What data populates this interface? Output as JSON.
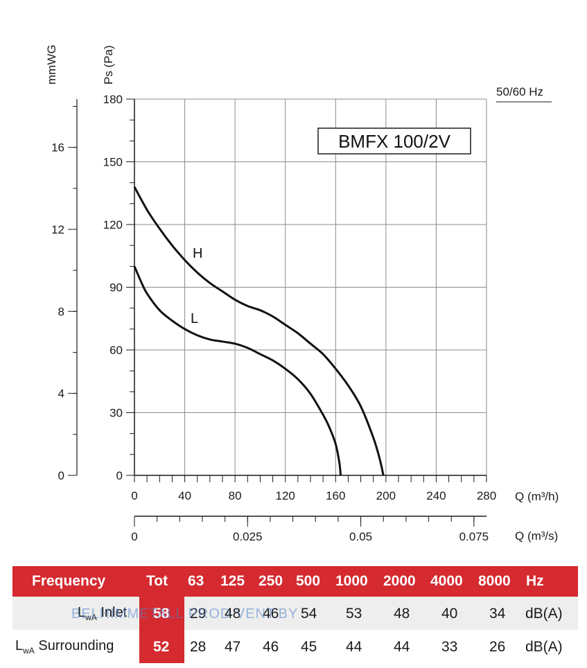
{
  "chart_data": {
    "type": "line",
    "title": "BMFX 100/2V",
    "frequency_note": "50/60 Hz",
    "xlabel": "Q (m³/h)",
    "x2label": "Q (m³/s)",
    "ylabel": "Ps (Pa)",
    "y2label": "mmWG",
    "xlim": [
      0,
      280
    ],
    "ylim": [
      0,
      180
    ],
    "x_ticks": [
      0,
      40,
      80,
      120,
      160,
      200,
      240,
      280
    ],
    "y_ticks": [
      0,
      30,
      60,
      90,
      120,
      150,
      180
    ],
    "x2_ticks": [
      "0",
      "0.025",
      "0.05",
      "0.075"
    ],
    "x2_tick_values": [
      0,
      0.025,
      0.05,
      0.075
    ],
    "y2_ticks": [
      0,
      4,
      8,
      12,
      16
    ],
    "grid": true,
    "series": [
      {
        "name": "H",
        "x": [
          0,
          10,
          20,
          30,
          40,
          50,
          60,
          70,
          80,
          90,
          100,
          110,
          120,
          130,
          140,
          150,
          160,
          170,
          180,
          190,
          195,
          198
        ],
        "y": [
          138,
          127,
          118,
          110,
          103,
          97,
          92,
          88,
          84,
          81,
          79,
          76,
          72,
          68,
          63,
          58,
          51,
          43,
          33,
          18,
          8,
          0
        ]
      },
      {
        "name": "L",
        "x": [
          0,
          5,
          10,
          20,
          30,
          40,
          50,
          60,
          70,
          80,
          90,
          100,
          110,
          120,
          130,
          140,
          150,
          155,
          160,
          163,
          164
        ],
        "y": [
          100,
          93,
          87,
          79,
          74,
          70,
          67,
          65,
          64,
          63,
          61,
          58,
          55,
          51,
          46,
          39,
          29,
          23,
          15,
          6,
          0
        ]
      }
    ]
  },
  "sound_table": {
    "headers": [
      "Frequency",
      "Tot",
      "63",
      "125",
      "250",
      "500",
      "1000",
      "2000",
      "4000",
      "8000",
      "Hz"
    ],
    "rows": [
      {
        "label_main": "L",
        "label_sub": "wA",
        "label_rest": " Inlet",
        "tot": "58",
        "values": [
          "29",
          "48",
          "46",
          "54",
          "53",
          "48",
          "40",
          "34"
        ],
        "unit": "dB(A)"
      },
      {
        "label_main": "L",
        "label_sub": "wA",
        "label_rest": " Surrounding",
        "tot": "52",
        "values": [
          "28",
          "47",
          "46",
          "45",
          "44",
          "44",
          "33",
          "26"
        ],
        "unit": "dB(A)"
      }
    ],
    "watermark": "BELHIMMETALL PROD  VENT.BY"
  },
  "colors": {
    "table_red": "#d42a30",
    "grid": "#8a8a8a",
    "curve": "#111111"
  }
}
